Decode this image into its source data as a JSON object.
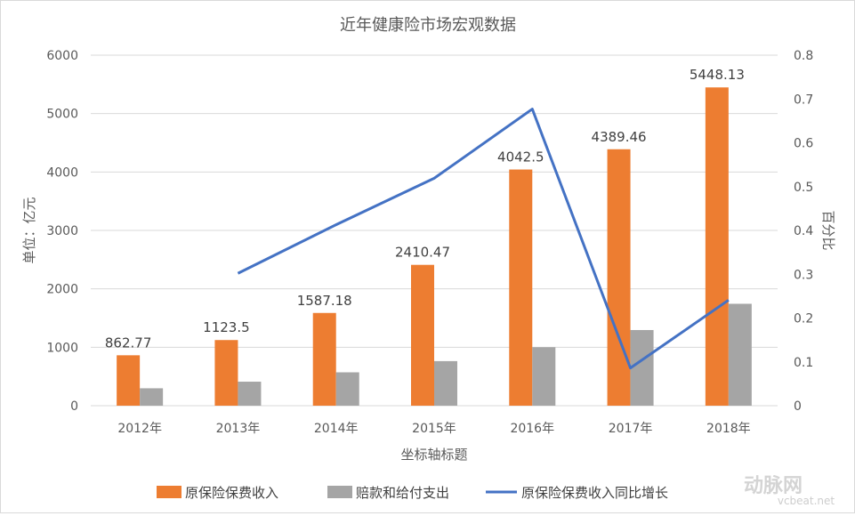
{
  "chart_data": {
    "type": "bar",
    "title": "近年健康险市场宏观数据",
    "xlabel": "坐标轴标题",
    "ylabel": "单位：亿元",
    "y2label": "百分比",
    "categories": [
      "2012年",
      "2013年",
      "2014年",
      "2015年",
      "2016年",
      "2017年",
      "2018年"
    ],
    "ylim": [
      0,
      6000
    ],
    "yticks": [
      0,
      1000,
      2000,
      3000,
      4000,
      5000,
      6000
    ],
    "y2lim": [
      0,
      0.8
    ],
    "y2ticks": [
      0,
      0.1,
      0.2,
      0.3,
      0.4,
      0.5,
      0.6,
      0.7,
      0.8
    ],
    "grid": true,
    "legend_position": "bottom",
    "series": [
      {
        "name": "原保险保费收入",
        "type": "bar",
        "axis": "left",
        "color": "#ed7d31",
        "values": [
          862.77,
          1123.5,
          1587.18,
          2410.47,
          4042.5,
          4389.46,
          5448.13
        ],
        "labels": [
          "862.77",
          "1123.5",
          "1587.18",
          "2410.47",
          "4042.5",
          "4389.46",
          "5448.13"
        ]
      },
      {
        "name": "赔款和给付支出",
        "type": "bar",
        "axis": "left",
        "color": "#a5a5a5",
        "values": [
          298,
          411,
          571,
          763,
          1001,
          1295,
          1744
        ]
      },
      {
        "name": "原保险保费收入同比增长",
        "type": "line",
        "axis": "right",
        "color": "#4472c4",
        "values": [
          null,
          0.302,
          0.413,
          0.519,
          0.677,
          0.086,
          0.241
        ]
      }
    ],
    "watermark": {
      "brand": "动脉网",
      "site": "vcbeat.net"
    }
  }
}
